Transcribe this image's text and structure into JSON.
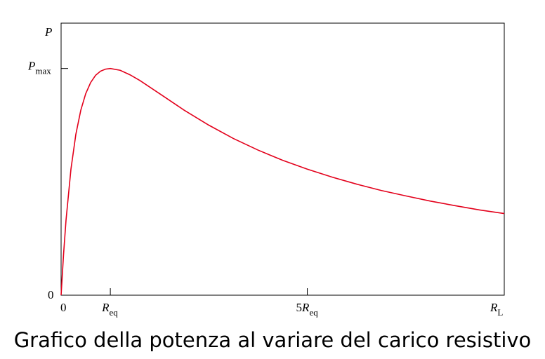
{
  "caption": "Grafico della potenza al variare del carico resistivo",
  "colors": {
    "curve": "#e3001b",
    "axes": "#000000"
  },
  "chart_data": {
    "type": "line",
    "title": "",
    "xlabel": {
      "main": "R",
      "sub": "L"
    },
    "ylabel": {
      "main": "P",
      "sub": ""
    },
    "xlim": [
      0,
      9
    ],
    "ylim": [
      0,
      1.2
    ],
    "x_ticks": [
      {
        "value": 0,
        "label": "0",
        "sub": ""
      },
      {
        "value": 1,
        "label": "R",
        "sub": "eq"
      },
      {
        "value": 5,
        "label": "5 R",
        "sub": "eq"
      }
    ],
    "y_ticks": [
      {
        "value": 0,
        "label": "0",
        "sub": ""
      },
      {
        "value": 1,
        "label": "P",
        "sub": "max"
      }
    ],
    "series": [
      {
        "x": [
          0,
          0.05,
          0.1,
          0.2,
          0.3,
          0.4,
          0.5,
          0.6,
          0.7,
          0.8,
          0.9,
          1.0,
          1.2,
          1.4,
          1.6,
          1.8,
          2.0,
          2.5,
          3.0,
          3.5,
          4.0,
          4.5,
          5.0,
          5.5,
          6.0,
          6.5,
          7.0,
          7.5,
          8.0,
          8.5,
          9.0
        ],
        "y": [
          0,
          0.181,
          0.331,
          0.556,
          0.71,
          0.816,
          0.889,
          0.938,
          0.97,
          0.988,
          0.997,
          1.0,
          0.992,
          0.972,
          0.947,
          0.918,
          0.889,
          0.816,
          0.75,
          0.691,
          0.64,
          0.595,
          0.556,
          0.521,
          0.49,
          0.462,
          0.438,
          0.415,
          0.395,
          0.376,
          0.36
        ]
      }
    ],
    "grid": false
  }
}
